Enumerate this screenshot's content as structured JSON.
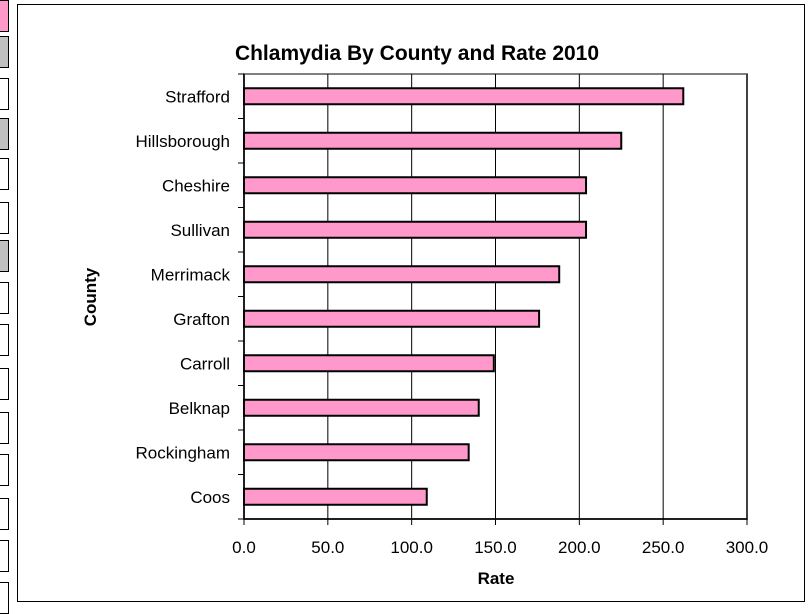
{
  "chart_data": {
    "type": "bar",
    "orientation": "horizontal",
    "title": "Chlamydia By County and Rate 2010",
    "xlabel": "Rate",
    "ylabel": "County",
    "categories": [
      "Strafford",
      "Hillsborough",
      "Cheshire",
      "Sullivan",
      "Merrimack",
      "Grafton",
      "Carroll",
      "Belknap",
      "Rockingham",
      "Coos"
    ],
    "values": [
      262.0,
      225.0,
      204.0,
      204.0,
      188.0,
      176.0,
      149.0,
      140.0,
      134.0,
      109.0
    ],
    "xlim": [
      0,
      300
    ],
    "xticks": [
      "0.0",
      "50.0",
      "100.0",
      "150.0",
      "200.0",
      "250.0",
      "300.0"
    ],
    "grid": "vertical",
    "legend": "none",
    "bar_color": "#ff99cc",
    "bar_border_color": "#000000"
  },
  "left_strip": {
    "colors": [
      "#ff99cc",
      "#c0c0c0",
      "#ffffff",
      "#c0c0c0",
      "#ffffff",
      "#ffffff",
      "#c0c0c0"
    ]
  }
}
